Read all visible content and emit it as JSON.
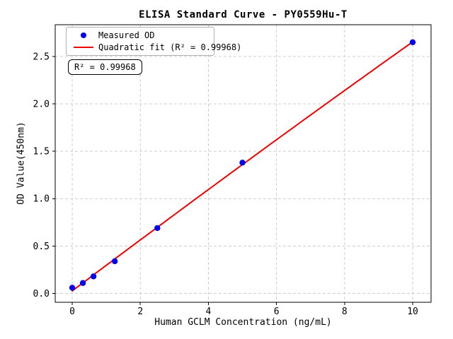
{
  "chart_data": {
    "type": "scatter",
    "title": "ELISA Standard Curve - PY0559Hu-T",
    "xlabel": "Human GCLM Concentration (ng/mL)",
    "ylabel": "OD Value(450nm)",
    "xlim": [
      -0.5,
      10.54
    ],
    "ylim": [
      -0.093,
      2.835
    ],
    "x_ticks": [
      0,
      2,
      4,
      6,
      8,
      10
    ],
    "x_tick_labels": [
      "0",
      "2",
      "4",
      "6",
      "8",
      "10"
    ],
    "y_ticks": [
      0,
      0.5,
      1.0,
      1.5,
      2.0,
      2.5
    ],
    "y_tick_labels": [
      "0.0",
      "0.5",
      "1.0",
      "1.5",
      "2.0",
      "2.5"
    ],
    "grid": true,
    "grid_style": "dashed",
    "legend": {
      "position": "upper-left",
      "items": [
        {
          "label": "Measured OD",
          "marker": "circle",
          "color": "#0000f0"
        },
        {
          "label": "Quadratic fit (R² = 0.99968)",
          "marker": "line",
          "color": "#f00000"
        }
      ]
    },
    "annotation": "R² = 0.99968",
    "r_squared": 0.99968,
    "series": [
      {
        "name": "Measured OD",
        "type": "scatter",
        "color": "#0000f0",
        "x": [
          0,
          0.3125,
          0.625,
          1.25,
          2.5,
          5,
          10
        ],
        "y": [
          0.06,
          0.11,
          0.18,
          0.34,
          0.69,
          1.38,
          2.65
        ]
      },
      {
        "name": "Quadratic fit",
        "type": "quadratic-fit",
        "color": "#f00000",
        "fit_of": "Measured OD",
        "r_squared": 0.99968
      }
    ],
    "colors": {
      "points": "#0000f0",
      "fit_line": "#f00000",
      "grid": "#c9c9c9",
      "spine": "#000000",
      "text": "#000000",
      "background": "#ffffff"
    }
  }
}
